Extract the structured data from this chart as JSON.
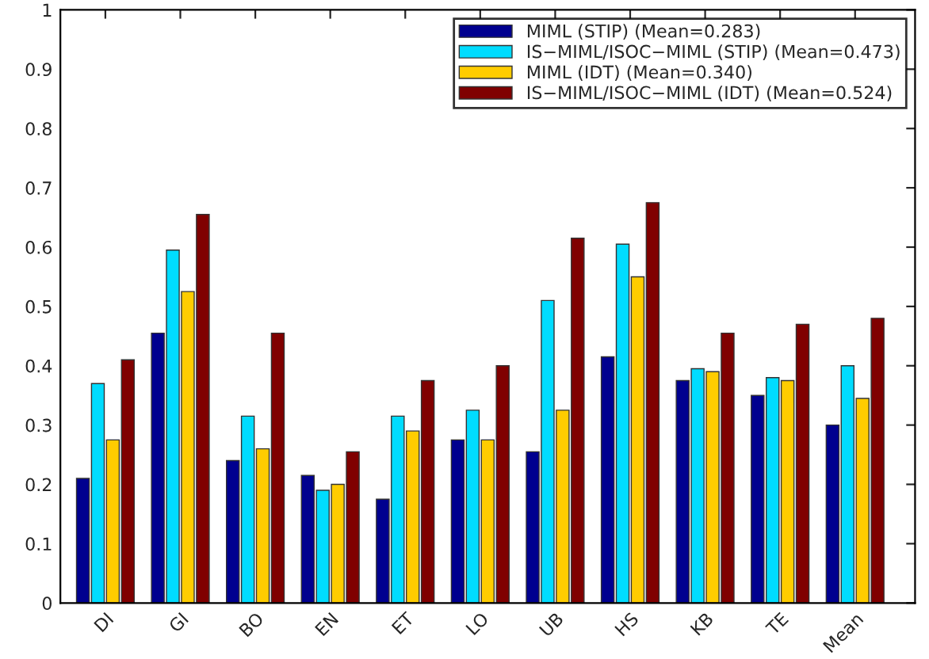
{
  "chart_data": {
    "type": "bar",
    "categories": [
      "DI",
      "GI",
      "BO",
      "EN",
      "ET",
      "LO",
      "UB",
      "HS",
      "KB",
      "TE",
      "Mean"
    ],
    "series": [
      {
        "name": "MIML (STIP) (Mean=0.283)",
        "color": "#00008f",
        "values": [
          0.21,
          0.455,
          0.24,
          0.215,
          0.175,
          0.275,
          0.255,
          0.415,
          0.375,
          0.35,
          0.3
        ]
      },
      {
        "name": "IS−MIML/ISOC−MIML (STIP) (Mean=0.473)",
        "color": "#00dcff",
        "values": [
          0.37,
          0.595,
          0.315,
          0.19,
          0.315,
          0.325,
          0.51,
          0.605,
          0.395,
          0.38,
          0.4
        ]
      },
      {
        "name": "MIML (IDT) (Mean=0.340)",
        "color": "#ffcc00",
        "values": [
          0.275,
          0.525,
          0.26,
          0.2,
          0.29,
          0.275,
          0.325,
          0.55,
          0.39,
          0.375,
          0.345
        ]
      },
      {
        "name": "IS−MIML/ISOC−MIML (IDT) (Mean=0.524)",
        "color": "#800000",
        "values": [
          0.41,
          0.655,
          0.455,
          0.255,
          0.375,
          0.4,
          0.615,
          0.675,
          0.455,
          0.47,
          0.48
        ]
      }
    ],
    "ylim": [
      0,
      1
    ],
    "yticks": [
      0,
      0.1,
      0.2,
      0.3,
      0.4,
      0.5,
      0.6,
      0.7,
      0.8,
      0.9,
      1
    ],
    "grid": false,
    "legend": "top right"
  }
}
